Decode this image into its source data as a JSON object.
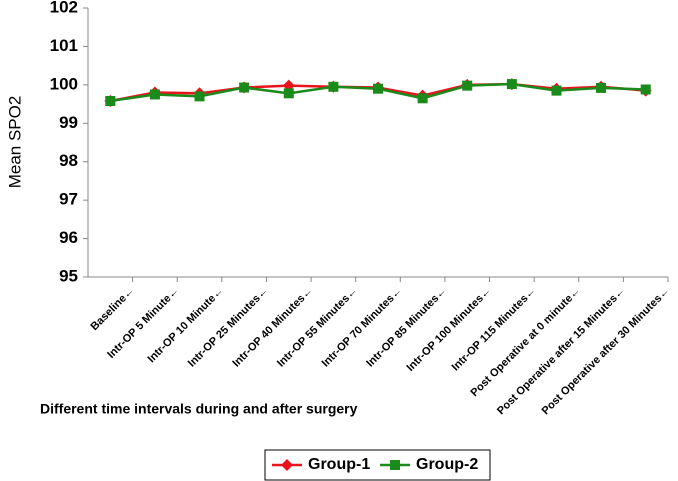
{
  "chart_data": {
    "type": "line",
    "y_label": "Mean SPO2",
    "x_label": "Different time intervals during and after surgery",
    "categories": [
      "Baseline←",
      "Intr-OP 5 Minute←",
      "Intr-OP 10 Minute←",
      "Intr-OP 25 Minutes←",
      "Intr-OP 40 Minutes←",
      "Intr-OP 55 Minutes←",
      "Intr-OP 70 Minutes←",
      "Intr-OP 85 Minutes←",
      "Intr-OP 100 Minutes←",
      "Intr-OP 115 Minutes←",
      "Post Operative at 0 minute←",
      "Post Operative after 15 Minutes←",
      "Post Operative after 30 Minutes←"
    ],
    "series": [
      {
        "name": "Group-1",
        "color": "#e8141c",
        "marker": "diamond",
        "values": [
          99.58,
          99.8,
          99.78,
          99.93,
          99.98,
          99.95,
          99.93,
          99.72,
          100.0,
          100.02,
          99.9,
          99.95,
          99.85
        ]
      },
      {
        "name": "Group-2",
        "color": "#1a8a1a",
        "marker": "square",
        "values": [
          99.58,
          99.75,
          99.7,
          99.93,
          99.78,
          99.95,
          99.9,
          99.65,
          99.98,
          100.02,
          99.85,
          99.92,
          99.88
        ]
      }
    ],
    "ylim": [
      95,
      102
    ],
    "yticks": [
      95,
      96,
      97,
      98,
      99,
      100,
      101,
      102
    ],
    "grid": false,
    "legend": "bottom"
  }
}
